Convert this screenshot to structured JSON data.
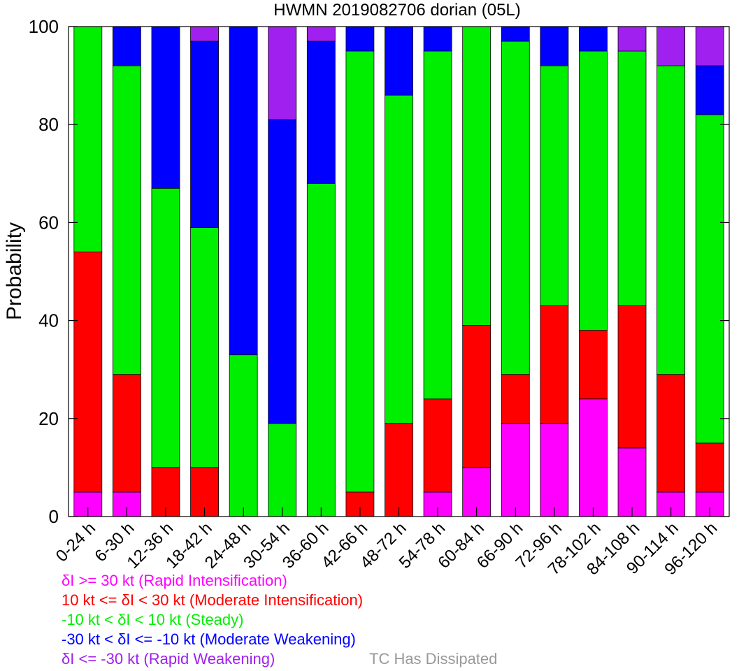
{
  "chart_data": {
    "type": "bar",
    "stacked": true,
    "title": "HWMN 2019082706 dorian (05L)",
    "xlabel": "",
    "ylabel": "Probability",
    "ylim": [
      0,
      100
    ],
    "yticks": [
      "0",
      "20",
      "40",
      "60",
      "80",
      "100"
    ],
    "grid": false,
    "categories": [
      "0-24 h",
      "6-30 h",
      "12-36 h",
      "18-42 h",
      "24-48 h",
      "30-54 h",
      "36-60 h",
      "42-66 h",
      "48-72 h",
      "54-78 h",
      "60-84 h",
      "66-90 h",
      "72-96 h",
      "78-102 h",
      "84-108 h",
      "90-114 h",
      "96-120 h"
    ],
    "series": [
      {
        "name": "δI >= 30 kt (Rapid Intensification)",
        "color": "#ff00ff",
        "values": [
          5,
          5,
          0,
          0,
          0,
          0,
          0,
          0,
          0,
          5,
          10,
          19,
          19,
          24,
          14,
          5,
          5
        ]
      },
      {
        "name": "10 kt <= δI < 30 kt (Moderate Intensification)",
        "color": "#ff0000",
        "values": [
          49,
          24,
          10,
          10,
          0,
          0,
          0,
          5,
          19,
          19,
          29,
          10,
          24,
          14,
          29,
          24,
          10
        ]
      },
      {
        "name": "-10 kt < δI < 10 kt (Steady)",
        "color": "#00ee00",
        "values": [
          46,
          63,
          57,
          49,
          33,
          19,
          68,
          90,
          67,
          71,
          61,
          68,
          49,
          57,
          52,
          63,
          67
        ]
      },
      {
        "name": "-30 kt < δI <= -10 kt (Moderate Weakening)",
        "color": "#0000ff",
        "values": [
          0,
          8,
          33,
          38,
          67,
          62,
          29,
          5,
          14,
          5,
          0,
          3,
          8,
          5,
          0,
          0,
          10
        ]
      },
      {
        "name": "δI <= -30 kt (Rapid Weakening)",
        "color": "#a020f0",
        "values": [
          0,
          0,
          0,
          3,
          0,
          19,
          3,
          0,
          0,
          0,
          0,
          0,
          0,
          0,
          5,
          8,
          8
        ]
      }
    ],
    "dissipated_label": "TC Has Dissipated",
    "dissipated_color": "#999999"
  }
}
